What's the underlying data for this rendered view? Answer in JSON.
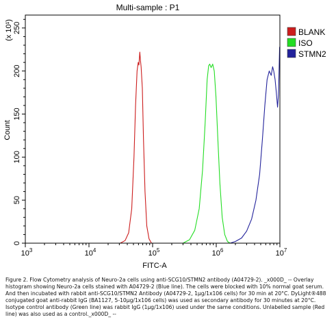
{
  "chart_data": {
    "type": "line",
    "title": "Multi-sample : P1",
    "xlabel": "FITC-A",
    "ylabel": "Count",
    "y_multiplier_label": "(x 10¹)",
    "x_scale": "log",
    "xlim": [
      1000,
      10000000
    ],
    "ylim": [
      0,
      265
    ],
    "x_ticks": [
      {
        "value": 1000,
        "base": "10",
        "exp": "3"
      },
      {
        "value": 10000,
        "base": "10",
        "exp": "4"
      },
      {
        "value": 100000,
        "base": "10",
        "exp": "5"
      },
      {
        "value": 1000000,
        "base": "10",
        "exp": "6"
      },
      {
        "value": 10000000,
        "base": "10",
        "exp": "7"
      }
    ],
    "y_ticks": [
      {
        "value": 0,
        "label": "0"
      },
      {
        "value": 50,
        "label": "50"
      },
      {
        "value": 100,
        "label": "100"
      },
      {
        "value": 150,
        "label": "150"
      },
      {
        "value": 200,
        "label": "200"
      },
      {
        "value": 250,
        "label": "250"
      }
    ],
    "legend_position": "right",
    "series": [
      {
        "name": "BLANK",
        "color": "#cc1c1c",
        "points": [
          [
            31000,
            0
          ],
          [
            37000,
            3
          ],
          [
            42000,
            12
          ],
          [
            47000,
            40
          ],
          [
            51000,
            100
          ],
          [
            54000,
            160
          ],
          [
            57000,
            200
          ],
          [
            59500,
            210
          ],
          [
            61000,
            207
          ],
          [
            63000,
            222
          ],
          [
            64500,
            212
          ],
          [
            66000,
            205
          ],
          [
            69000,
            180
          ],
          [
            72000,
            120
          ],
          [
            76000,
            60
          ],
          [
            81000,
            20
          ],
          [
            88000,
            5
          ],
          [
            96000,
            0
          ]
        ]
      },
      {
        "name": "ISO",
        "color": "#22dd22",
        "points": [
          [
            300000,
            0
          ],
          [
            380000,
            4
          ],
          [
            460000,
            15
          ],
          [
            540000,
            40
          ],
          [
            610000,
            85
          ],
          [
            670000,
            140
          ],
          [
            720000,
            190
          ],
          [
            760000,
            206
          ],
          [
            790000,
            208
          ],
          [
            830000,
            204
          ],
          [
            880000,
            208
          ],
          [
            930000,
            200
          ],
          [
            990000,
            170
          ],
          [
            1060000,
            120
          ],
          [
            1140000,
            70
          ],
          [
            1240000,
            30
          ],
          [
            1360000,
            10
          ],
          [
            1500000,
            2
          ],
          [
            1650000,
            0
          ]
        ]
      },
      {
        "name": "STMN2",
        "color": "#22229b",
        "points": [
          [
            1650000,
            0
          ],
          [
            2000000,
            2
          ],
          [
            2500000,
            6
          ],
          [
            3000000,
            14
          ],
          [
            3600000,
            28
          ],
          [
            4200000,
            50
          ],
          [
            4800000,
            80
          ],
          [
            5300000,
            120
          ],
          [
            5800000,
            160
          ],
          [
            6300000,
            190
          ],
          [
            6800000,
            200
          ],
          [
            7300000,
            195
          ],
          [
            7700000,
            205
          ],
          [
            8000000,
            200
          ],
          [
            8400000,
            190
          ],
          [
            8800000,
            175
          ],
          [
            9200000,
            158
          ],
          [
            9500000,
            172
          ],
          [
            9700000,
            200
          ],
          [
            9900000,
            228
          ]
        ]
      }
    ]
  },
  "caption": "Figure 2. Flow Cytometry analysis of Neuro-2a cells using anti-SCG10/STMN2 antibody (A04729-2). _x000D_ -- Overlay histogram showing Neuro-2a cells stained with A04729-2 (Blue line). The cells were blocked with 10% normal goat serum. And then incubated with rabbit anti-SCG10/STMN2 Antibody (A04729-2, 1μg/1x106 cells) for 30 min at 20°C. DyLight®488 conjugated goat anti-rabbit IgG (BA1127, 5-10μg/1x106 cells) was used as secondary antibody for 30 minutes at 20°C. Isotype control antibody (Green line) was rabbit IgG (1μg/1x106) used under the same conditions. Unlabelled sample (Red line) was also used as a control._x000D_ --"
}
